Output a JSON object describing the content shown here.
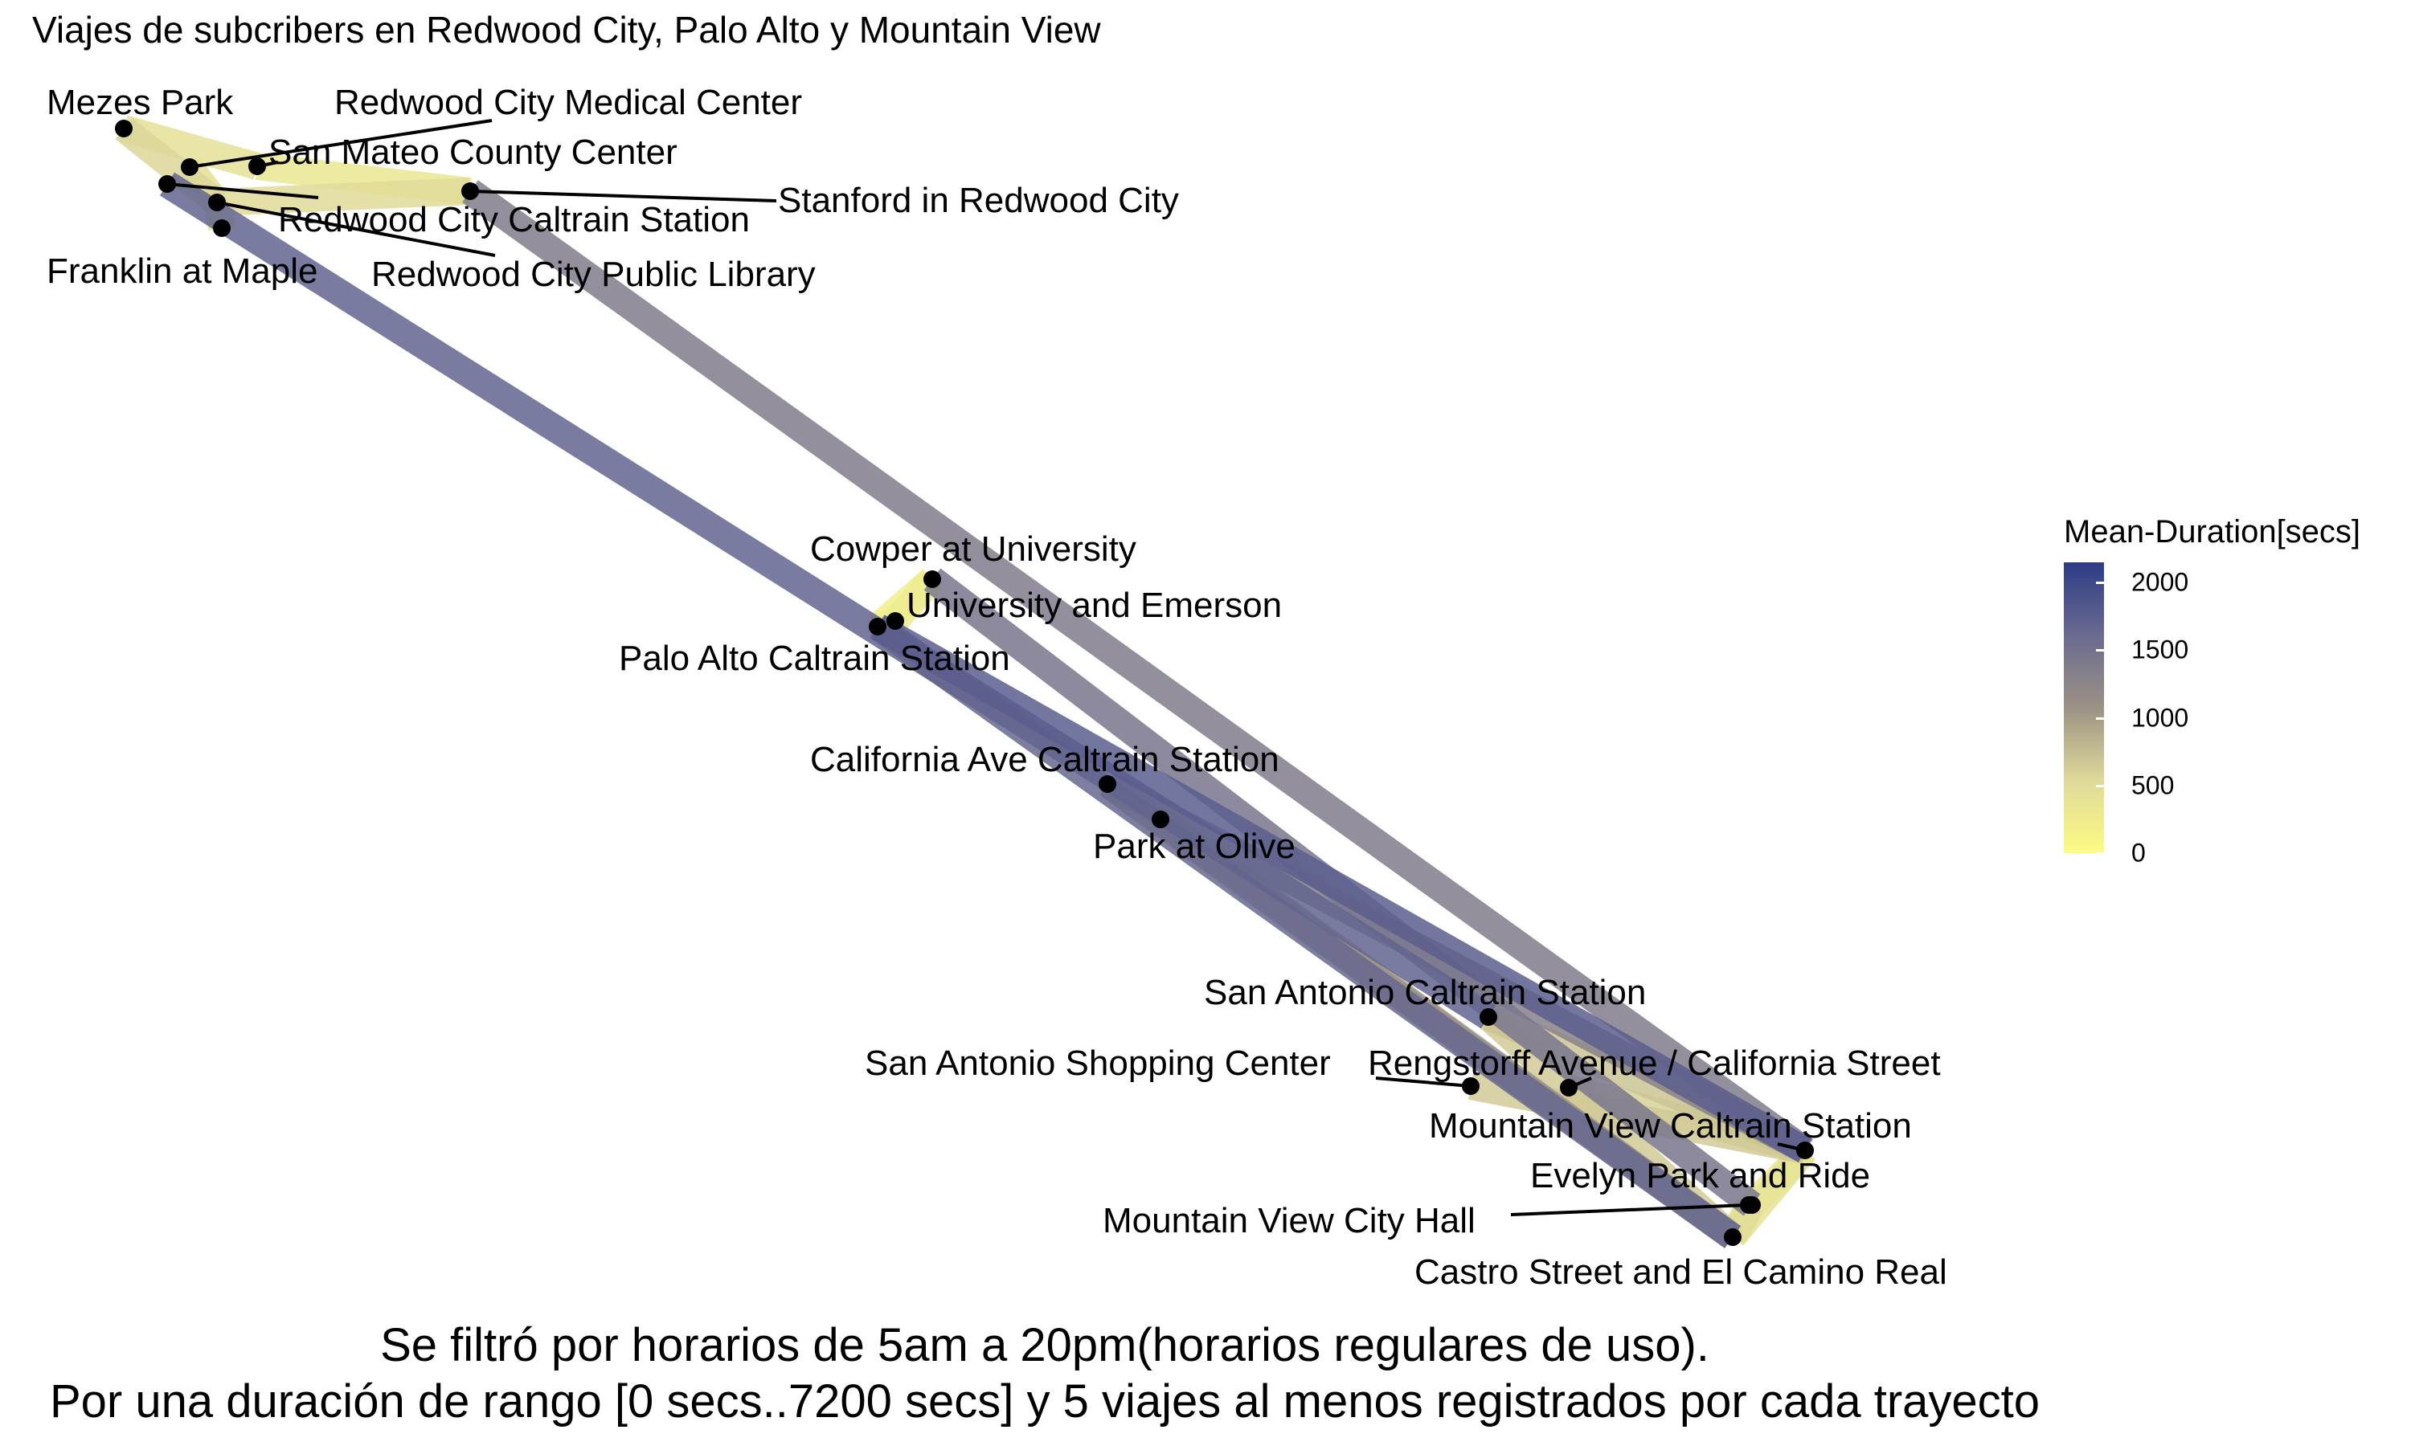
{
  "chart_data": {
    "type": "network map",
    "title": "Viajes de subcribers en Redwood City, Palo Alto y Mountain View",
    "caption_lines": [
      "Se filtró por horarios de 5am a 20pm(horarios regulares de uso).",
      "Por una duración de rango [0 secs..7200 secs] y 5 viajes al menos registrados por cada trayecto"
    ],
    "colorbar": {
      "title": "Mean-Duration[secs]",
      "range": [
        0,
        2150
      ],
      "ticks": [
        0,
        500,
        1000,
        1500,
        2000
      ],
      "colors": [
        "#fcfc84",
        "#dfd99a",
        "#9c9285",
        "#6a6a90",
        "#2d3c86"
      ]
    },
    "stations": [
      {
        "id": "mezes",
        "name": "Mezes Park"
      },
      {
        "id": "rcmed",
        "name": "Redwood City Medical Center"
      },
      {
        "id": "smcc",
        "name": "San Mateo County Center"
      },
      {
        "id": "stanrc",
        "name": "Stanford in Redwood City"
      },
      {
        "id": "rccal",
        "name": "Redwood City Caltrain Station"
      },
      {
        "id": "rclib",
        "name": "Redwood City Public Library"
      },
      {
        "id": "frank",
        "name": "Franklin at Maple"
      },
      {
        "id": "cowper",
        "name": "Cowper at University"
      },
      {
        "id": "univ",
        "name": "University and Emerson"
      },
      {
        "id": "pacal",
        "name": "Palo Alto Caltrain Station"
      },
      {
        "id": "calave",
        "name": "California Ave Caltrain Station"
      },
      {
        "id": "olive",
        "name": "Park at Olive"
      },
      {
        "id": "sacal",
        "name": "San Antonio Caltrain Station"
      },
      {
        "id": "sashop",
        "name": "San Antonio Shopping Center"
      },
      {
        "id": "rengs",
        "name": "Rengstorff Avenue / California Street"
      },
      {
        "id": "mvcal",
        "name": "Mountain View Caltrain Station"
      },
      {
        "id": "evelyn",
        "name": "Evelyn Park and Ride"
      },
      {
        "id": "mvch",
        "name": "Mountain View City Hall"
      },
      {
        "id": "castro",
        "name": "Castro Street and El Camino Real"
      }
    ],
    "routes": [
      {
        "from": "frank",
        "to": "sacal",
        "mean_duration": 1680
      },
      {
        "from": "stanrc",
        "to": "mvcal",
        "mean_duration": 1380
      },
      {
        "from": "pacal",
        "to": "castro",
        "mean_duration": 1650
      },
      {
        "from": "pacal",
        "to": "mvcal",
        "mean_duration": 1750
      },
      {
        "from": "cowper",
        "to": "evelyn",
        "mean_duration": 1450
      },
      {
        "from": "calave",
        "to": "mvcal",
        "mean_duration": 1300
      },
      {
        "from": "calave",
        "to": "castro",
        "mean_duration": 1100
      },
      {
        "from": "olive",
        "to": "castro",
        "mean_duration": 1000
      },
      {
        "from": "sacal",
        "to": "castro",
        "mean_duration": 650
      },
      {
        "from": "sacal",
        "to": "mvcal",
        "mean_duration": 700
      },
      {
        "from": "sashop",
        "to": "mvcal",
        "mean_duration": 650
      },
      {
        "from": "rengs",
        "to": "mvcal",
        "mean_duration": 600
      },
      {
        "from": "mvcal",
        "to": "evelyn",
        "mean_duration": 280
      },
      {
        "from": "evelyn",
        "to": "castro",
        "mean_duration": 480
      },
      {
        "from": "mvch",
        "to": "castro",
        "mean_duration": 380
      },
      {
        "from": "mvcal",
        "to": "castro",
        "mean_duration": 400
      },
      {
        "from": "mezes",
        "to": "rccal",
        "mean_duration": 560
      },
      {
        "from": "rccal",
        "to": "stanrc",
        "mean_duration": 520
      },
      {
        "from": "smcc",
        "to": "stanrc",
        "mean_duration": 330
      },
      {
        "from": "mezes",
        "to": "smcc",
        "mean_duration": 430
      },
      {
        "from": "rccal",
        "to": "rclib",
        "mean_duration": 350
      },
      {
        "from": "rccal",
        "to": "rcmed",
        "mean_duration": 450
      },
      {
        "from": "pacal",
        "to": "univ",
        "mean_duration": 150
      },
      {
        "from": "pacal",
        "to": "cowper",
        "mean_duration": 220
      },
      {
        "from": "univ",
        "to": "cowper",
        "mean_duration": 250
      }
    ]
  }
}
